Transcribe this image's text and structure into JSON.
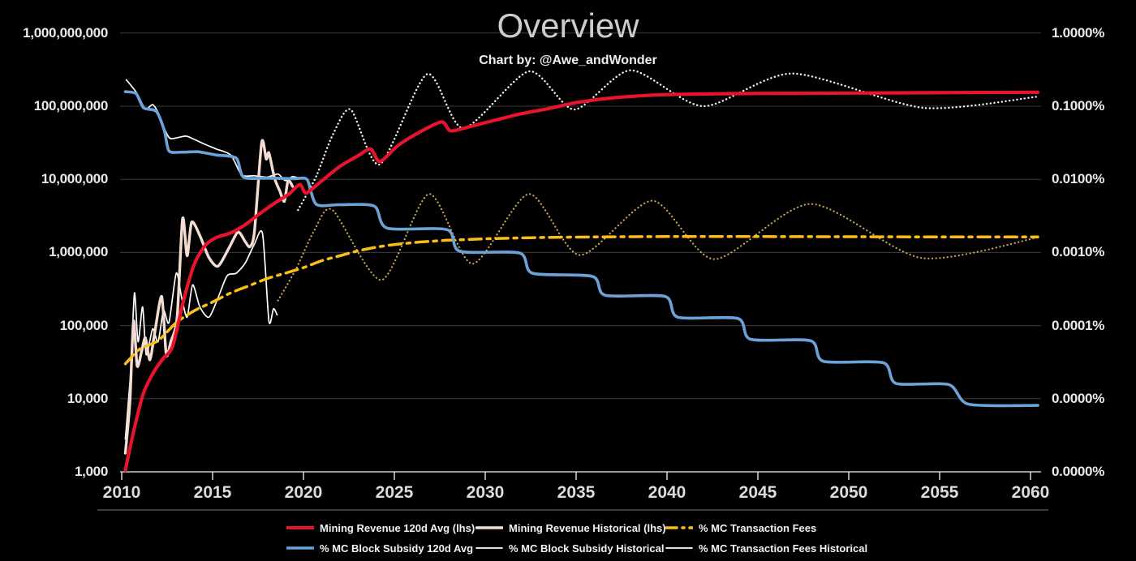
{
  "title": "Overview",
  "subtitle": "Chart by: @Awe_andWonder",
  "chart_data": {
    "type": "line",
    "background": "#000000",
    "grid": {
      "show": true,
      "color": "#3c3c3c",
      "axis_line_color": "#c9c9c9",
      "separator_color": "#7d7d7d"
    },
    "x_axis": {
      "range": [
        2010,
        2060.5
      ],
      "tick_years": [
        2010,
        2015,
        2020,
        2025,
        2030,
        2035,
        2040,
        2045,
        2050,
        2055,
        2060
      ],
      "tick_labels": [
        "2010",
        "2015",
        "2020",
        "2025",
        "2030",
        "2035",
        "2040",
        "2045",
        "2050",
        "2055",
        "2060"
      ]
    },
    "left_axis": {
      "scale": "log",
      "min": 1000,
      "max": 1000000000,
      "tick_labels_top_down": [
        "1,000,000,000",
        "100,000,000",
        "10,000,000",
        "1,000,000",
        "100,000",
        "10,000",
        "1,000"
      ]
    },
    "right_axis": {
      "scale": "log",
      "min": 1e-06,
      "max": 1.0,
      "tick_labels_top_down": [
        "1.0000%",
        "0.1000%",
        "0.0100%",
        "0.0010%",
        "0.0001%",
        "0.0000%",
        "0.0000%"
      ]
    },
    "series": [
      {
        "id": "fees_proj",
        "name": "% MC Transaction Fees (projected cycle)",
        "axis": "right",
        "color": "#cfa94c",
        "style": "dotted",
        "width": 2.2,
        "points": [
          [
            2018.6,
            0.00022
          ],
          [
            2019.6,
            0.0006
          ],
          [
            2020.6,
            0.002
          ],
          [
            2021.6,
            0.0038
          ],
          [
            2024.3,
            0.00042
          ],
          [
            2026.9,
            0.0063
          ],
          [
            2029.3,
            0.0007
          ],
          [
            2032.4,
            0.0063
          ],
          [
            2035.2,
            0.00092
          ],
          [
            2039.2,
            0.0051
          ],
          [
            2042.6,
            0.00081
          ],
          [
            2047.9,
            0.0046
          ],
          [
            2054.0,
            0.00084
          ],
          [
            2060.4,
            0.0016
          ]
        ]
      },
      {
        "id": "rev_proj",
        "name": "Mining Revenue (projected cycle)",
        "axis": "left",
        "color": "#f3f3f3",
        "style": "dotted",
        "width": 2.4,
        "points": [
          [
            2019.7,
            3800000
          ],
          [
            2020.7,
            11000000
          ],
          [
            2021.6,
            40000000
          ],
          [
            2022.6,
            90000000
          ],
          [
            2024.2,
            16000000
          ],
          [
            2026.8,
            275000000
          ],
          [
            2028.8,
            50000000
          ],
          [
            2032.4,
            300000000
          ],
          [
            2034.9,
            90000000
          ],
          [
            2038.0,
            310000000
          ],
          [
            2042.0,
            100000000
          ],
          [
            2046.9,
            280000000
          ],
          [
            2054.1,
            95000000
          ],
          [
            2060.4,
            135000000
          ]
        ]
      },
      {
        "id": "fees_hist",
        "name": "% MC Transaction Fees Historical",
        "axis": "right",
        "color": "#ffffff",
        "style": "solid",
        "width": 1.7,
        "points": [
          [
            2010.2,
            2.8e-06
          ],
          [
            2010.5,
            2.5e-05
          ],
          [
            2010.7,
            0.00028
          ],
          [
            2010.9,
            6e-05
          ],
          [
            2011.15,
            0.00018
          ],
          [
            2011.35,
            4e-05
          ],
          [
            2011.7,
            9e-05
          ],
          [
            2012.0,
            6e-05
          ],
          [
            2012.3,
            0.00016
          ],
          [
            2012.6,
            0.00011
          ],
          [
            2013.0,
            0.00052
          ],
          [
            2013.3,
            0.00024
          ],
          [
            2013.6,
            0.00013
          ],
          [
            2013.9,
            0.00036
          ],
          [
            2014.3,
            0.00018
          ],
          [
            2014.8,
            0.00013
          ],
          [
            2015.3,
            0.00024
          ],
          [
            2015.8,
            0.00048
          ],
          [
            2016.3,
            0.00052
          ],
          [
            2016.8,
            0.00072
          ],
          [
            2017.3,
            0.0013
          ],
          [
            2017.75,
            0.0018
          ],
          [
            2018.1,
            0.000115
          ],
          [
            2018.35,
            0.00017
          ],
          [
            2018.55,
            0.00014
          ]
        ]
      },
      {
        "id": "subsidy_hist",
        "name": "% MC Block Subsidy Historical",
        "axis": "right",
        "color": "#ffffff",
        "style": "solid",
        "width": 1.7,
        "points": [
          [
            2010.25,
            0.23
          ],
          [
            2010.8,
            0.155
          ],
          [
            2011.3,
            0.092
          ],
          [
            2011.7,
            0.105
          ],
          [
            2012.0,
            0.082
          ],
          [
            2012.4,
            0.046
          ],
          [
            2012.7,
            0.036
          ],
          [
            2013.5,
            0.039
          ],
          [
            2013.9,
            0.036
          ],
          [
            2014.6,
            0.03
          ],
          [
            2015.2,
            0.026
          ],
          [
            2016.0,
            0.0215
          ],
          [
            2016.6,
            0.0115
          ],
          [
            2017.3,
            0.0112
          ],
          [
            2018.0,
            0.0107
          ],
          [
            2018.6,
            0.0118
          ],
          [
            2019.0,
            0.0096
          ],
          [
            2019.4,
            0.0109
          ],
          [
            2019.9,
            0.0101
          ]
        ]
      },
      {
        "id": "rev_hist",
        "name": "Mining Revenue Historical (lhs)",
        "axis": "left",
        "color": "#f5dcd0",
        "style": "solid",
        "width": 3.4,
        "points": [
          [
            2010.2,
            1800
          ],
          [
            2010.45,
            9000
          ],
          [
            2010.65,
            115000
          ],
          [
            2010.85,
            28000
          ],
          [
            2011.1,
            45000
          ],
          [
            2011.3,
            68000
          ],
          [
            2011.55,
            34000
          ],
          [
            2011.8,
            75000
          ],
          [
            2012.2,
            250000
          ],
          [
            2012.45,
            40000
          ],
          [
            2012.7,
            60000
          ],
          [
            2013.05,
            130000
          ],
          [
            2013.35,
            2900000
          ],
          [
            2013.6,
            900000
          ],
          [
            2013.85,
            2600000
          ],
          [
            2014.3,
            1700000
          ],
          [
            2014.8,
            850000
          ],
          [
            2015.3,
            650000
          ],
          [
            2015.9,
            1150000
          ],
          [
            2016.4,
            1900000
          ],
          [
            2016.8,
            1400000
          ],
          [
            2017.05,
            1200000
          ],
          [
            2017.3,
            1900000
          ],
          [
            2017.7,
            32000000
          ],
          [
            2017.95,
            19000000
          ],
          [
            2018.1,
            23000000
          ],
          [
            2018.4,
            10500000
          ],
          [
            2018.7,
            6900000
          ],
          [
            2018.95,
            5000000
          ],
          [
            2019.15,
            9600000
          ],
          [
            2019.4,
            8000000
          ]
        ]
      },
      {
        "id": "fees_avg",
        "name": "% MC Transaction Fees",
        "axis": "right",
        "color": "#fdbd18",
        "style": "dash-dot",
        "width": 3.5,
        "points": [
          [
            2010.2,
            3e-05
          ],
          [
            2011.0,
            4.8e-05
          ],
          [
            2012.0,
            6.2e-05
          ],
          [
            2013.0,
            0.00011
          ],
          [
            2014.0,
            0.00016
          ],
          [
            2015.0,
            0.00021
          ],
          [
            2016.0,
            0.00028
          ],
          [
            2017.0,
            0.00035
          ],
          [
            2018.0,
            0.00044
          ],
          [
            2019.0,
            0.00052
          ],
          [
            2020.0,
            0.00062
          ],
          [
            2021.0,
            0.00077
          ],
          [
            2022.0,
            0.0009
          ],
          [
            2023.0,
            0.00105
          ],
          [
            2024.0,
            0.00118
          ],
          [
            2025.0,
            0.00128
          ],
          [
            2026.0,
            0.00136
          ],
          [
            2027.0,
            0.00142
          ],
          [
            2028.0,
            0.00147
          ],
          [
            2029.5,
            0.00152
          ],
          [
            2031.0,
            0.00156
          ],
          [
            2033.0,
            0.0016
          ],
          [
            2036.0,
            0.00163
          ],
          [
            2040.0,
            0.00165
          ],
          [
            2045.0,
            0.00165
          ],
          [
            2050.0,
            0.00164
          ],
          [
            2055.0,
            0.00163
          ],
          [
            2060.4,
            0.00163
          ]
        ]
      },
      {
        "id": "subsidy_avg",
        "name": "% MC Block Subsidy 120d Avg",
        "axis": "right",
        "color": "#6ba3d8",
        "style": "solid",
        "width": 3.6,
        "points": [
          [
            2010.2,
            0.158
          ],
          [
            2010.8,
            0.148
          ],
          [
            2011.2,
            0.095
          ],
          [
            2011.9,
            0.085
          ],
          [
            2012.35,
            0.046
          ],
          [
            2012.6,
            0.0245
          ],
          [
            2013.3,
            0.0235
          ],
          [
            2014.2,
            0.0238
          ],
          [
            2015.2,
            0.0215
          ],
          [
            2016.3,
            0.0195
          ],
          [
            2016.7,
            0.0107
          ],
          [
            2018.0,
            0.0104
          ],
          [
            2019.5,
            0.0102
          ],
          [
            2020.2,
            0.0099
          ],
          [
            2020.7,
            0.00455
          ],
          [
            2022.0,
            0.0045
          ],
          [
            2023.9,
            0.0043
          ],
          [
            2024.6,
            0.00215
          ],
          [
            2027.9,
            0.00205
          ],
          [
            2028.6,
            0.00104
          ],
          [
            2031.9,
            0.00098
          ],
          [
            2032.6,
            0.00052
          ],
          [
            2035.9,
            0.00047
          ],
          [
            2036.6,
            0.00026
          ],
          [
            2039.9,
            0.00025
          ],
          [
            2040.6,
            0.00013
          ],
          [
            2043.9,
            0.000125
          ],
          [
            2044.6,
            6.5e-05
          ],
          [
            2047.9,
            6.2e-05
          ],
          [
            2048.6,
            3.25e-05
          ],
          [
            2051.9,
            3.1e-05
          ],
          [
            2052.6,
            1.62e-05
          ],
          [
            2055.5,
            1.56e-05
          ],
          [
            2056.6,
            8.4e-06
          ],
          [
            2060.4,
            8.1e-06
          ]
        ]
      },
      {
        "id": "rev_avg",
        "name": "Mining Revenue 120d Avg (lhs)",
        "axis": "left",
        "color": "#e8142d",
        "style": "solid",
        "width": 4.2,
        "points": [
          [
            2010.2,
            1050
          ],
          [
            2010.7,
            4000
          ],
          [
            2011.2,
            12000
          ],
          [
            2011.8,
            24000
          ],
          [
            2012.3,
            36000
          ],
          [
            2012.8,
            52000
          ],
          [
            2013.4,
            220000
          ],
          [
            2014.0,
            700000
          ],
          [
            2014.6,
            1250000
          ],
          [
            2015.2,
            1600000
          ],
          [
            2016.0,
            1850000
          ],
          [
            2016.8,
            2400000
          ],
          [
            2017.6,
            3400000
          ],
          [
            2018.4,
            4700000
          ],
          [
            2019.2,
            6300000
          ],
          [
            2019.8,
            8500000
          ],
          [
            2020.15,
            6500000
          ],
          [
            2021.0,
            9500000
          ],
          [
            2022.0,
            15000000
          ],
          [
            2023.0,
            21000000
          ],
          [
            2023.7,
            26000000
          ],
          [
            2024.2,
            17500000
          ],
          [
            2025.2,
            29000000
          ],
          [
            2026.3,
            43000000
          ],
          [
            2027.6,
            61000000
          ],
          [
            2028.1,
            46000000
          ],
          [
            2029.2,
            53000000
          ],
          [
            2030.5,
            64000000
          ],
          [
            2031.8,
            77000000
          ],
          [
            2033.5,
            93000000
          ],
          [
            2035.0,
            112000000
          ],
          [
            2036.5,
            126000000
          ],
          [
            2038.0,
            136000000
          ],
          [
            2040.0,
            144000000
          ],
          [
            2043.0,
            148000000
          ],
          [
            2047.0,
            150000000
          ],
          [
            2052.0,
            152000000
          ],
          [
            2060.4,
            155000000
          ]
        ]
      }
    ],
    "legend": {
      "rows": [
        [
          {
            "label": "Mining Revenue 120d Avg (lhs)",
            "series": "rev_avg"
          },
          {
            "label": "Mining Revenue Historical (lhs)",
            "series": "rev_hist"
          },
          {
            "label": "% MC Transaction Fees",
            "series": "fees_avg"
          }
        ],
        [
          {
            "label": "% MC Block Subsidy 120d Avg",
            "series": "subsidy_avg"
          },
          {
            "label": "% MC Block Subsidy Historical",
            "series": "subsidy_hist"
          },
          {
            "label": "% MC Transaction Fees Historical",
            "series": "fees_hist"
          }
        ]
      ]
    }
  }
}
